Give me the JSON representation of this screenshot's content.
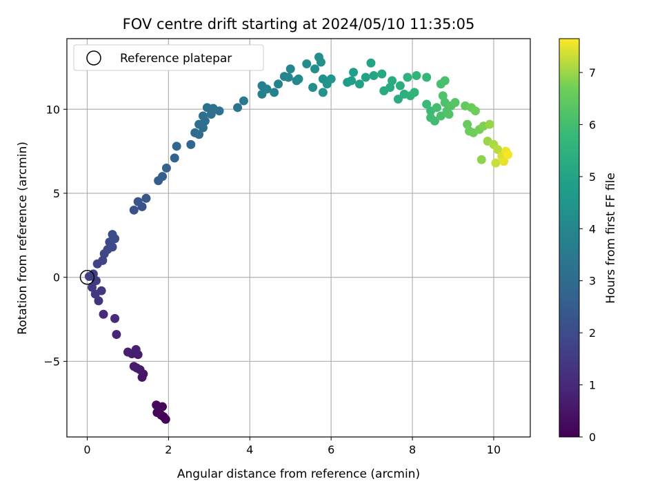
{
  "chart_data": {
    "type": "scatter",
    "title": "FOV centre drift starting at 2024/05/10 11:35:05",
    "xlabel": "Angular distance from reference (arcmin)",
    "ylabel": "Rotation from reference (arcmin)",
    "xlim": [
      -0.5,
      10.9
    ],
    "ylim": [
      -9.5,
      14.2
    ],
    "xticks": [
      0,
      2,
      4,
      6,
      8,
      10
    ],
    "yticks": [
      -5,
      0,
      5,
      10
    ],
    "ytick_labels": [
      "−5",
      "0",
      "5",
      "10"
    ],
    "grid": true,
    "legend": {
      "placement": "top-left",
      "entries": [
        "Reference platepar"
      ]
    },
    "reference": {
      "x": 0,
      "y": 0
    },
    "colorbar": {
      "label": "Hours from first FF file",
      "range": [
        0,
        7.65
      ],
      "ticks": [
        0,
        1,
        2,
        3,
        4,
        5,
        6,
        7
      ],
      "colormap": "viridis"
    },
    "points": [
      {
        "x": 1.93,
        "y": -8.45,
        "h": 0.0
      },
      {
        "x": 1.88,
        "y": -8.3,
        "h": 0.05
      },
      {
        "x": 1.82,
        "y": -8.2,
        "h": 0.08
      },
      {
        "x": 1.72,
        "y": -8.05,
        "h": 0.12
      },
      {
        "x": 1.85,
        "y": -7.7,
        "h": 0.15
      },
      {
        "x": 1.7,
        "y": -7.6,
        "h": 0.18
      },
      {
        "x": 1.35,
        "y": -5.95,
        "h": 0.5
      },
      {
        "x": 1.38,
        "y": -5.75,
        "h": 0.55
      },
      {
        "x": 1.3,
        "y": -5.5,
        "h": 0.6
      },
      {
        "x": 1.22,
        "y": -5.4,
        "h": 0.62
      },
      {
        "x": 1.15,
        "y": -5.3,
        "h": 0.65
      },
      {
        "x": 1.25,
        "y": -4.6,
        "h": 0.7
      },
      {
        "x": 1.1,
        "y": -4.55,
        "h": 0.72
      },
      {
        "x": 1.0,
        "y": -4.45,
        "h": 0.75
      },
      {
        "x": 1.2,
        "y": -4.3,
        "h": 0.78
      },
      {
        "x": 0.72,
        "y": -3.4,
        "h": 0.85
      },
      {
        "x": 0.68,
        "y": -2.45,
        "h": 1.0
      },
      {
        "x": 0.4,
        "y": -2.2,
        "h": 1.05
      },
      {
        "x": 0.28,
        "y": -1.4,
        "h": 1.3
      },
      {
        "x": 0.35,
        "y": -0.8,
        "h": 1.4
      },
      {
        "x": 0.2,
        "y": -1.0,
        "h": 1.45
      },
      {
        "x": 0.12,
        "y": -0.6,
        "h": 1.5
      },
      {
        "x": 0.22,
        "y": -0.2,
        "h": 1.55
      },
      {
        "x": 0.15,
        "y": 0.2,
        "h": 1.6
      },
      {
        "x": 0.05,
        "y": 0.05,
        "h": 1.62
      },
      {
        "x": 0.25,
        "y": 0.8,
        "h": 1.7
      },
      {
        "x": 0.38,
        "y": 1.0,
        "h": 1.75
      },
      {
        "x": 0.42,
        "y": 1.4,
        "h": 1.8
      },
      {
        "x": 0.5,
        "y": 1.65,
        "h": 1.85
      },
      {
        "x": 0.62,
        "y": 1.8,
        "h": 1.9
      },
      {
        "x": 0.55,
        "y": 2.1,
        "h": 1.95
      },
      {
        "x": 0.68,
        "y": 2.3,
        "h": 2.0
      },
      {
        "x": 0.62,
        "y": 2.55,
        "h": 2.05
      },
      {
        "x": 1.15,
        "y": 4.0,
        "h": 2.15
      },
      {
        "x": 1.35,
        "y": 4.2,
        "h": 2.2
      },
      {
        "x": 1.25,
        "y": 4.5,
        "h": 2.25
      },
      {
        "x": 1.45,
        "y": 4.7,
        "h": 2.3
      },
      {
        "x": 1.75,
        "y": 5.75,
        "h": 2.55
      },
      {
        "x": 1.85,
        "y": 6.0,
        "h": 2.6
      },
      {
        "x": 1.95,
        "y": 6.5,
        "h": 2.65
      },
      {
        "x": 2.15,
        "y": 7.1,
        "h": 2.75
      },
      {
        "x": 2.2,
        "y": 7.8,
        "h": 2.85
      },
      {
        "x": 2.55,
        "y": 7.9,
        "h": 2.9
      },
      {
        "x": 2.65,
        "y": 8.6,
        "h": 3.0
      },
      {
        "x": 2.75,
        "y": 8.5,
        "h": 3.02
      },
      {
        "x": 2.85,
        "y": 8.9,
        "h": 3.05
      },
      {
        "x": 2.75,
        "y": 9.1,
        "h": 3.08
      },
      {
        "x": 2.9,
        "y": 9.3,
        "h": 3.1
      },
      {
        "x": 2.85,
        "y": 9.6,
        "h": 3.12
      },
      {
        "x": 3.05,
        "y": 9.7,
        "h": 3.15
      },
      {
        "x": 2.95,
        "y": 10.1,
        "h": 3.18
      },
      {
        "x": 3.1,
        "y": 10.05,
        "h": 3.2
      },
      {
        "x": 3.25,
        "y": 9.9,
        "h": 3.25
      },
      {
        "x": 3.7,
        "y": 10.1,
        "h": 3.4
      },
      {
        "x": 3.85,
        "y": 10.5,
        "h": 3.5
      },
      {
        "x": 4.3,
        "y": 10.9,
        "h": 3.7
      },
      {
        "x": 4.3,
        "y": 11.4,
        "h": 3.72
      },
      {
        "x": 4.42,
        "y": 11.2,
        "h": 3.75
      },
      {
        "x": 4.6,
        "y": 11.0,
        "h": 3.8
      },
      {
        "x": 4.7,
        "y": 11.5,
        "h": 3.85
      },
      {
        "x": 4.85,
        "y": 11.95,
        "h": 3.9
      },
      {
        "x": 4.95,
        "y": 11.9,
        "h": 3.95
      },
      {
        "x": 5.0,
        "y": 12.4,
        "h": 4.0
      },
      {
        "x": 5.15,
        "y": 11.7,
        "h": 4.05
      },
      {
        "x": 5.2,
        "y": 11.8,
        "h": 4.08
      },
      {
        "x": 5.4,
        "y": 12.7,
        "h": 4.15
      },
      {
        "x": 5.55,
        "y": 11.3,
        "h": 4.2
      },
      {
        "x": 5.6,
        "y": 12.4,
        "h": 4.25
      },
      {
        "x": 5.7,
        "y": 13.1,
        "h": 4.3
      },
      {
        "x": 5.75,
        "y": 12.8,
        "h": 4.32
      },
      {
        "x": 5.8,
        "y": 11.8,
        "h": 4.35
      },
      {
        "x": 5.8,
        "y": 11.0,
        "h": 4.38
      },
      {
        "x": 5.9,
        "y": 11.5,
        "h": 4.4
      },
      {
        "x": 6.0,
        "y": 11.8,
        "h": 4.45
      },
      {
        "x": 6.4,
        "y": 11.6,
        "h": 4.7
      },
      {
        "x": 6.55,
        "y": 12.2,
        "h": 4.8
      },
      {
        "x": 6.5,
        "y": 11.7,
        "h": 4.82
      },
      {
        "x": 6.7,
        "y": 11.5,
        "h": 4.9
      },
      {
        "x": 6.85,
        "y": 11.9,
        "h": 4.95
      },
      {
        "x": 6.98,
        "y": 12.75,
        "h": 5.0
      },
      {
        "x": 7.05,
        "y": 12.0,
        "h": 5.05
      },
      {
        "x": 7.25,
        "y": 12.1,
        "h": 5.15
      },
      {
        "x": 7.3,
        "y": 11.1,
        "h": 5.2
      },
      {
        "x": 7.45,
        "y": 11.3,
        "h": 5.25
      },
      {
        "x": 7.5,
        "y": 11.7,
        "h": 5.3
      },
      {
        "x": 7.65,
        "y": 10.6,
        "h": 5.35
      },
      {
        "x": 7.7,
        "y": 11.4,
        "h": 5.4
      },
      {
        "x": 7.8,
        "y": 10.9,
        "h": 5.45
      },
      {
        "x": 7.88,
        "y": 11.9,
        "h": 5.5
      },
      {
        "x": 7.95,
        "y": 10.8,
        "h": 5.55
      },
      {
        "x": 8.05,
        "y": 11.0,
        "h": 5.6
      },
      {
        "x": 8.1,
        "y": 12.0,
        "h": 5.62
      },
      {
        "x": 8.35,
        "y": 11.9,
        "h": 5.7
      },
      {
        "x": 8.35,
        "y": 10.3,
        "h": 5.8
      },
      {
        "x": 8.45,
        "y": 9.9,
        "h": 5.85
      },
      {
        "x": 8.45,
        "y": 9.5,
        "h": 5.9
      },
      {
        "x": 8.55,
        "y": 9.3,
        "h": 5.95
      },
      {
        "x": 8.6,
        "y": 10.1,
        "h": 6.0
      },
      {
        "x": 8.7,
        "y": 11.5,
        "h": 6.05
      },
      {
        "x": 8.8,
        "y": 11.7,
        "h": 6.08
      },
      {
        "x": 8.7,
        "y": 9.6,
        "h": 6.1
      },
      {
        "x": 8.8,
        "y": 10.4,
        "h": 6.12
      },
      {
        "x": 8.85,
        "y": 9.9,
        "h": 6.15
      },
      {
        "x": 8.75,
        "y": 10.8,
        "h": 6.18
      },
      {
        "x": 8.9,
        "y": 9.7,
        "h": 6.2
      },
      {
        "x": 8.95,
        "y": 10.2,
        "h": 6.25
      },
      {
        "x": 9.05,
        "y": 10.4,
        "h": 6.3
      },
      {
        "x": 9.3,
        "y": 10.2,
        "h": 6.5
      },
      {
        "x": 9.35,
        "y": 9.1,
        "h": 6.55
      },
      {
        "x": 9.45,
        "y": 10.1,
        "h": 6.6
      },
      {
        "x": 9.4,
        "y": 8.7,
        "h": 6.62
      },
      {
        "x": 9.55,
        "y": 9.9,
        "h": 6.65
      },
      {
        "x": 9.5,
        "y": 8.6,
        "h": 6.7
      },
      {
        "x": 9.65,
        "y": 8.8,
        "h": 6.75
      },
      {
        "x": 9.75,
        "y": 9.0,
        "h": 6.8
      },
      {
        "x": 9.7,
        "y": 7.0,
        "h": 6.9
      },
      {
        "x": 9.9,
        "y": 9.1,
        "h": 6.95
      },
      {
        "x": 9.85,
        "y": 8.1,
        "h": 7.0
      },
      {
        "x": 10.0,
        "y": 7.9,
        "h": 7.1
      },
      {
        "x": 10.1,
        "y": 7.6,
        "h": 7.2
      },
      {
        "x": 10.05,
        "y": 6.8,
        "h": 7.3
      },
      {
        "x": 10.2,
        "y": 7.2,
        "h": 7.4
      },
      {
        "x": 10.25,
        "y": 6.9,
        "h": 7.5
      },
      {
        "x": 10.3,
        "y": 7.5,
        "h": 7.55
      },
      {
        "x": 10.35,
        "y": 7.3,
        "h": 7.6
      }
    ]
  }
}
